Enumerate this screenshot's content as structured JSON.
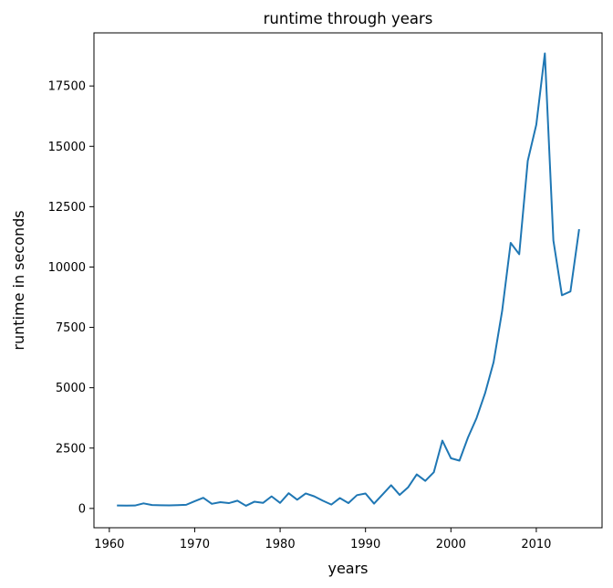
{
  "chart_data": {
    "type": "line",
    "title": "runtime through years",
    "xlabel": "years",
    "ylabel": "runtime in seconds",
    "xlim": [
      1958.3,
      1917.7
    ],
    "ylim": [
      -800,
      19700
    ],
    "xticks": [
      1960,
      1970,
      1980,
      1990,
      2000,
      2010
    ],
    "yticks": [
      0,
      2500,
      5000,
      7500,
      10000,
      12500,
      15000,
      17500
    ],
    "grid": false,
    "color": "#1f77b4",
    "series": [
      {
        "x": [
          1961,
          1962,
          1963,
          1964,
          1965,
          1966,
          1967,
          1968,
          1969,
          1970,
          1971,
          1972,
          1973,
          1974,
          1975,
          1976,
          1977,
          1978,
          1979,
          1980,
          1981,
          1982,
          1983,
          1984,
          1985,
          1986,
          1987,
          1988,
          1989,
          1990,
          1991,
          1992,
          1993,
          1994,
          1995,
          1996,
          1997,
          1998,
          1999,
          2000,
          2001,
          2002,
          2003,
          2004,
          2005,
          2006,
          2007,
          2008,
          2009,
          2010,
          2011,
          2012,
          2013,
          2014,
          2015
        ],
        "y": [
          120,
          115,
          120,
          210,
          140,
          130,
          125,
          135,
          150,
          300,
          440,
          190,
          260,
          220,
          320,
          110,
          280,
          230,
          500,
          230,
          630,
          360,
          620,
          500,
          320,
          160,
          430,
          220,
          550,
          620,
          200,
          580,
          960,
          560,
          880,
          1410,
          1140,
          1500,
          2810,
          2080,
          1980,
          2940,
          3740,
          4770,
          6060,
          8180,
          11000,
          10530,
          14400,
          15900,
          18850,
          11100,
          8830,
          8990,
          11530
        ]
      }
    ]
  }
}
